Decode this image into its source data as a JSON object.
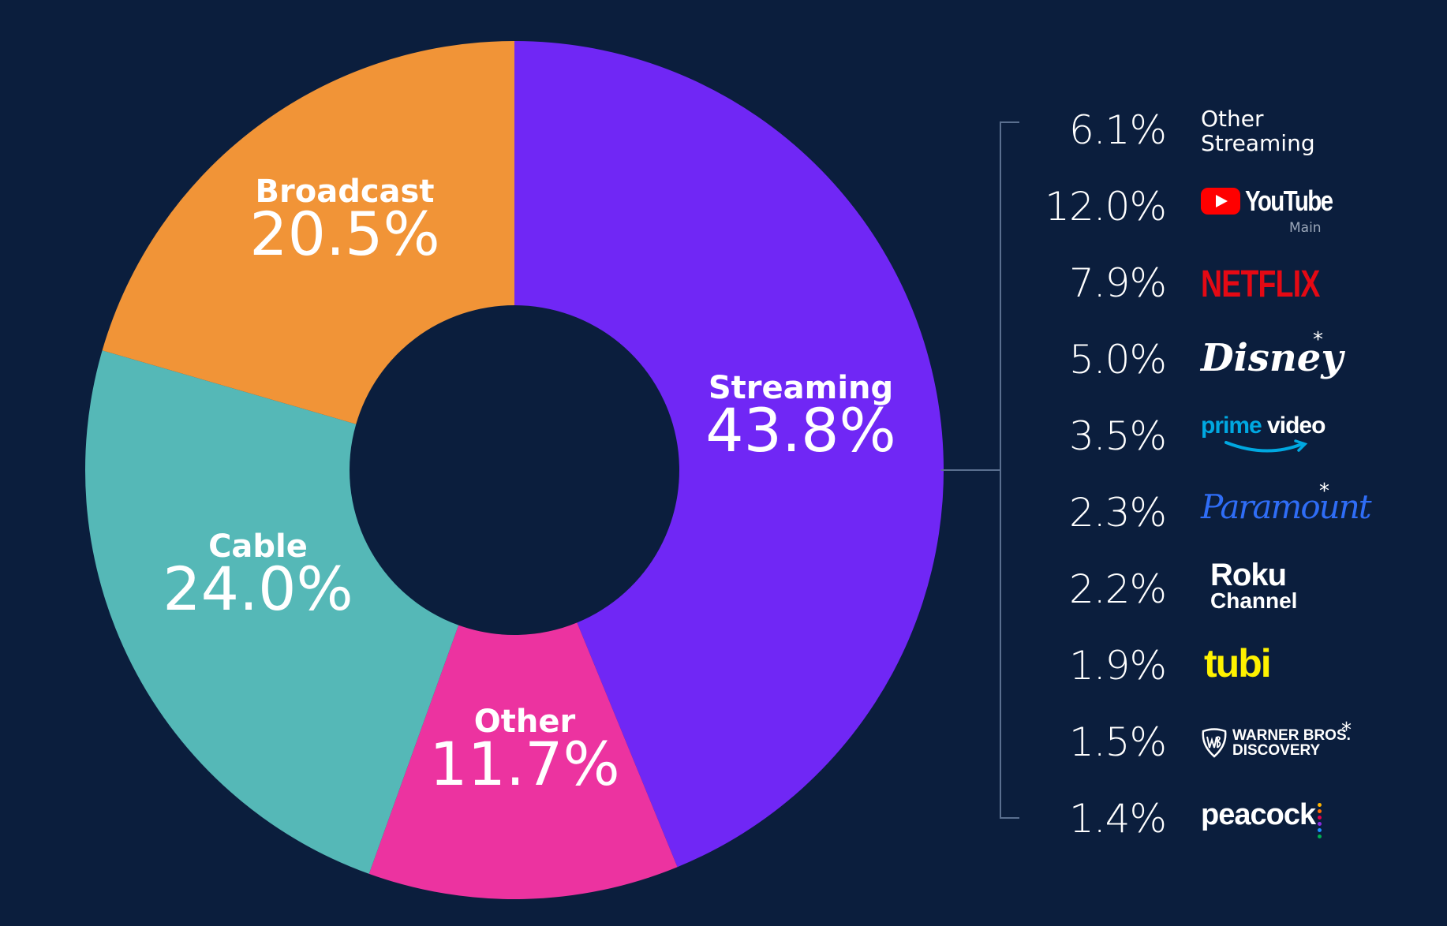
{
  "chart_data": [
    {
      "type": "pie",
      "variant": "donut",
      "categories": [
        "Streaming",
        "Other",
        "Cable",
        "Broadcast"
      ],
      "values": [
        43.8,
        11.7,
        24.0,
        20.5
      ],
      "value_labels": [
        "43.8%",
        "11.7%",
        "24.0%",
        "20.5%"
      ],
      "colors": [
        "#7027f5",
        "#ec33a0",
        "#55b8b7",
        "#f19437"
      ],
      "start": "top, clockwise",
      "title": "",
      "xlabel": "",
      "ylabel": ""
    },
    {
      "type": "table",
      "detail_of": "Streaming",
      "categories": [
        "Other Streaming",
        "YouTube Main",
        "Netflix",
        "Disney",
        "Prime Video",
        "Paramount",
        "Roku Channel",
        "Tubi",
        "Warner Bros. Discovery",
        "Peacock"
      ],
      "values": [
        6.1,
        12.0,
        7.9,
        5.0,
        3.5,
        2.3,
        2.2,
        1.9,
        1.5,
        1.4
      ],
      "value_labels": [
        "6.1%",
        "12.0%",
        "7.9%",
        "5.0%",
        "3.5%",
        "2.3%",
        "2.2%",
        "1.9%",
        "1.5%",
        "1.4%"
      ]
    }
  ],
  "logos": {
    "other_streaming": [
      "Other",
      "Streaming"
    ],
    "youtube": {
      "word": "YouTube",
      "sub": "Main",
      "color": "#ff0000"
    },
    "netflix": {
      "word": "NETFLIX",
      "color": "#e50914"
    },
    "disney": {
      "word": "Disney",
      "asterisk": "*"
    },
    "prime": {
      "word1": "prime",
      "word2": "video",
      "color": "#00a8e1"
    },
    "paramount": {
      "word": "Paramount",
      "asterisk": "*",
      "color": "#2f6df6"
    },
    "roku": {
      "line1": "Roku",
      "line2": "Channel"
    },
    "tubi": {
      "word": "tubi",
      "color": "#fff200"
    },
    "wbd": {
      "line1": "WARNER BROS.",
      "line2": "DISCOVERY",
      "asterisk": "*"
    },
    "peacock": {
      "word": "peacock",
      "dot_colors": [
        "#ffb400",
        "#ff6b00",
        "#e5004b",
        "#8a2be2",
        "#1e90ff",
        "#00b050"
      ]
    }
  },
  "colors": {
    "background": "#0b1e3d",
    "bracket": "#5a6f8f"
  }
}
